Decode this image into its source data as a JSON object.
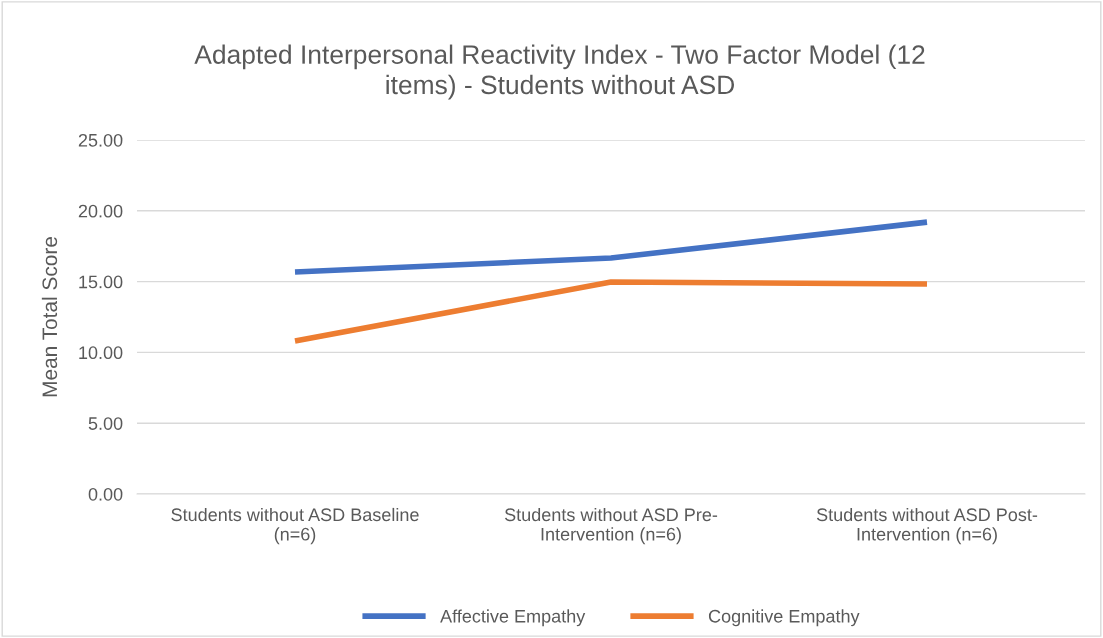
{
  "chart_data": {
    "type": "line",
    "title": "Adapted Interpersonal Reactivity Index - Two Factor Model (12\nitems) - Students without ASD",
    "ylabel": "Mean Total Score",
    "categories": [
      "Students without ASD Baseline\n(n=6)",
      "Students without ASD Pre-\nIntervention (n=6)",
      "Students without ASD Post-\nIntervention (n=6)"
    ],
    "series": [
      {
        "name": "Affective Empathy",
        "color": "#4472c4",
        "values": [
          15.68,
          16.67,
          19.2
        ]
      },
      {
        "name": "Cognitive Empathy",
        "color": "#ed7d31",
        "values": [
          10.8,
          14.97,
          14.83
        ]
      }
    ],
    "ylim": [
      0,
      25
    ],
    "yticks": [
      {
        "value": 0,
        "label": "0.00"
      },
      {
        "value": 5,
        "label": "5.00"
      },
      {
        "value": 10,
        "label": "10.00"
      },
      {
        "value": 15,
        "label": "15.00"
      },
      {
        "value": 20,
        "label": "20.00"
      },
      {
        "value": 25,
        "label": "25.00"
      }
    ],
    "grid": "y",
    "legend": "bottom",
    "marker": "none",
    "line_style": "solid"
  }
}
